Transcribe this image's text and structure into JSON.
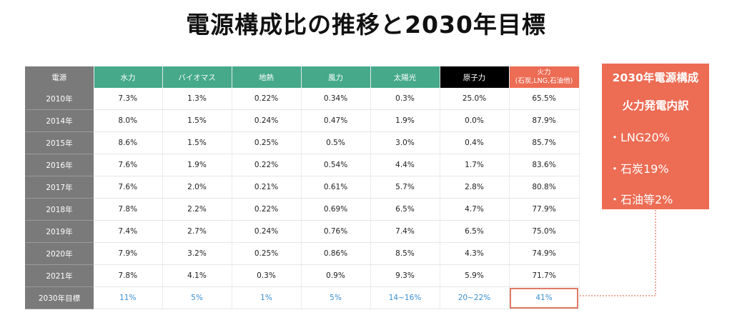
{
  "title": "電源構成比の推移と2030年目標",
  "table": {
    "corner": "電源",
    "columns": [
      "水力",
      "バイオマス",
      "地熱",
      "風力",
      "太陽光",
      "原子力",
      "火力"
    ],
    "thermal_sub": "(石炭,LNG,石油他)",
    "rows": [
      {
        "label": "2010年",
        "values": [
          "7.3%",
          "1.3%",
          "0.22%",
          "0.34%",
          "0.3%",
          "25.0%",
          "65.5%"
        ]
      },
      {
        "label": "2014年",
        "values": [
          "8.0%",
          "1.5%",
          "0.24%",
          "0.47%",
          "1.9%",
          "0.0%",
          "87.9%"
        ]
      },
      {
        "label": "2015年",
        "values": [
          "8.6%",
          "1.5%",
          "0.25%",
          "0.5%",
          "3.0%",
          "0.4%",
          "85.7%"
        ]
      },
      {
        "label": "2016年",
        "values": [
          "7.6%",
          "1.9%",
          "0.22%",
          "0.54%",
          "4.4%",
          "1.7%",
          "83.6%"
        ]
      },
      {
        "label": "2017年",
        "values": [
          "7.6%",
          "2.0%",
          "0.21%",
          "0.61%",
          "5.7%",
          "2.8%",
          "80.8%"
        ]
      },
      {
        "label": "2018年",
        "values": [
          "7.8%",
          "2.2%",
          "0.22%",
          "0.69%",
          "6.5%",
          "4.7%",
          "77.9%"
        ]
      },
      {
        "label": "2019年",
        "values": [
          "7.4%",
          "2.7%",
          "0.24%",
          "0.76%",
          "7.4%",
          "6.5%",
          "75.0%"
        ]
      },
      {
        "label": "2020年",
        "values": [
          "7.9%",
          "3.2%",
          "0.25%",
          "0.86%",
          "8.5%",
          "4.3%",
          "74.9%"
        ]
      },
      {
        "label": "2021年",
        "values": [
          "7.8%",
          "4.1%",
          "0.3%",
          "0.9%",
          "9.3%",
          "5.9%",
          "71.7%"
        ]
      }
    ],
    "target": {
      "label": "2030年目標",
      "values": [
        "11%",
        "5%",
        "1%",
        "5%",
        "14~16%",
        "20~22%",
        "41%"
      ]
    }
  },
  "infobox": {
    "heading1": "2030年電源構成",
    "heading2": "火力発電内訳",
    "items": [
      "・LNG20%",
      "・石炭19%",
      "・石油等2%"
    ]
  },
  "colors": {
    "header_green": "#45a98a",
    "row_label_gray": "#7a7a7a",
    "nuclear_black": "#000000",
    "thermal_orange": "#ec6c54",
    "target_blue": "#3a8fd1"
  }
}
